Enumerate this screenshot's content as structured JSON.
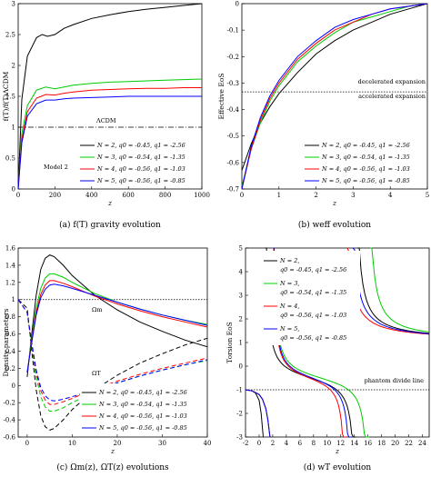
{
  "chart_data": [
    {
      "id": "a",
      "type": "line",
      "caption": "(a)  f(T) gravity evolution",
      "xlabel": "z",
      "ylabel": "f(T)/f(T)ΛCDM",
      "xlim": [
        0,
        1000
      ],
      "ylim": [
        0,
        3
      ],
      "xticks": [
        0,
        200,
        400,
        600,
        800,
        1000
      ],
      "yticks": [
        0,
        0.5,
        1,
        1.5,
        2,
        2.5,
        3
      ],
      "annotations": [
        "ΛCDM",
        "Model 2"
      ],
      "reference": {
        "name": "ΛCDM",
        "y": 1,
        "style": "dashdot"
      },
      "legend": [
        "N = 2, q0 = -0.45, q1 = -2.56",
        "N = 3, q0 = -0.54, q1 = -1.35",
        "N = 4, q0 = -0.56, q1 = -1.03",
        "N = 5, q0 = -0.56, q1 = -0.85"
      ],
      "legend_position": "bottom-right",
      "series": [
        {
          "color": "#000000",
          "x": [
            0,
            20,
            50,
            100,
            130,
            160,
            200,
            250,
            300,
            400,
            500,
            600,
            700,
            800,
            900,
            1000
          ],
          "values": [
            0,
            1.45,
            2.15,
            2.45,
            2.5,
            2.47,
            2.5,
            2.6,
            2.66,
            2.76,
            2.82,
            2.87,
            2.91,
            2.94,
            2.97,
            3.0
          ]
        },
        {
          "color": "#00cc00",
          "x": [
            0,
            20,
            50,
            100,
            150,
            200,
            250,
            300,
            400,
            500,
            600,
            700,
            800,
            900,
            1000
          ],
          "values": [
            0,
            0.9,
            1.35,
            1.6,
            1.65,
            1.62,
            1.65,
            1.68,
            1.71,
            1.73,
            1.74,
            1.75,
            1.76,
            1.77,
            1.78
          ]
        },
        {
          "color": "#ff0000",
          "x": [
            0,
            20,
            50,
            100,
            150,
            200,
            250,
            300,
            400,
            500,
            600,
            700,
            800,
            900,
            1000
          ],
          "values": [
            0,
            0.8,
            1.25,
            1.47,
            1.53,
            1.52,
            1.55,
            1.57,
            1.6,
            1.61,
            1.62,
            1.63,
            1.63,
            1.64,
            1.64
          ]
        },
        {
          "color": "#0000ff",
          "x": [
            0,
            20,
            50,
            100,
            150,
            200,
            250,
            300,
            400,
            500,
            600,
            700,
            800,
            900,
            1000
          ],
          "values": [
            0,
            0.75,
            1.18,
            1.38,
            1.44,
            1.44,
            1.46,
            1.47,
            1.48,
            1.49,
            1.5,
            1.5,
            1.5,
            1.5,
            1.5
          ]
        }
      ]
    },
    {
      "id": "b",
      "type": "line",
      "caption": "(b)  weff evolution",
      "xlabel": "z",
      "ylabel": "Effective EoS",
      "xlim": [
        0,
        5
      ],
      "ylim": [
        -0.7,
        0
      ],
      "xticks": [
        0,
        1,
        2,
        3,
        4,
        5
      ],
      "yticks": [
        -0.7,
        -0.6,
        -0.5,
        -0.4,
        -0.3,
        -0.2,
        -0.1,
        0
      ],
      "annotations": [
        "decelerated expansion",
        "accelerated expansion"
      ],
      "reference": {
        "y": -0.3333,
        "style": "dotted"
      },
      "legend": [
        "N = 2, q0 = -0.45, q1 = -2.56",
        "N = 3, q0 = -0.54, q1 = -1.35",
        "N = 4, q0 = -0.56, q1 = -1.03",
        "N = 5, q0 = -0.56, q1 = -0.85"
      ],
      "legend_position": "bottom-right",
      "series": [
        {
          "color": "#000000",
          "x": [
            0,
            0.25,
            0.5,
            0.75,
            1,
            1.5,
            2,
            2.5,
            3,
            3.5,
            4,
            4.5,
            5
          ],
          "values": [
            -0.63,
            -0.53,
            -0.45,
            -0.39,
            -0.34,
            -0.26,
            -0.19,
            -0.14,
            -0.1,
            -0.07,
            -0.04,
            -0.02,
            0
          ]
        },
        {
          "color": "#00cc00",
          "x": [
            0,
            0.25,
            0.5,
            0.75,
            1,
            1.5,
            2,
            2.5,
            3,
            3.5,
            4,
            4.5,
            5
          ],
          "values": [
            -0.69,
            -0.55,
            -0.45,
            -0.37,
            -0.31,
            -0.22,
            -0.16,
            -0.11,
            -0.07,
            -0.05,
            -0.03,
            -0.01,
            0
          ]
        },
        {
          "color": "#ff0000",
          "x": [
            0,
            0.25,
            0.5,
            0.75,
            1,
            1.5,
            2,
            2.5,
            3,
            3.5,
            4,
            4.5,
            5
          ],
          "values": [
            -0.7,
            -0.55,
            -0.44,
            -0.36,
            -0.3,
            -0.21,
            -0.15,
            -0.1,
            -0.07,
            -0.04,
            -0.02,
            -0.01,
            0
          ]
        },
        {
          "color": "#0000ff",
          "x": [
            0,
            0.25,
            0.5,
            0.75,
            1,
            1.5,
            2,
            2.5,
            3,
            3.5,
            4,
            4.5,
            5
          ],
          "values": [
            -0.7,
            -0.54,
            -0.43,
            -0.35,
            -0.29,
            -0.2,
            -0.14,
            -0.09,
            -0.06,
            -0.04,
            -0.02,
            -0.01,
            0
          ]
        }
      ]
    },
    {
      "id": "c",
      "type": "line",
      "caption": "(c)  Ωm(z), ΩT(z) evolutions",
      "xlabel": "z",
      "ylabel": "Density parameters",
      "xlim": [
        -2,
        40
      ],
      "ylim": [
        -0.6,
        1.6
      ],
      "xticks": [
        0,
        10,
        20,
        30,
        40
      ],
      "yticks": [
        -0.6,
        -0.4,
        -0.2,
        0,
        0.2,
        0.4,
        0.6,
        0.8,
        1,
        1.2,
        1.4,
        1.6
      ],
      "annotations": [
        "Ωm",
        "ΩT"
      ],
      "reference": {
        "y": 1,
        "style": "dotted"
      },
      "legend": [
        "N = 2, q0 = -0.45, q1 = -2.56",
        "N = 3, q0 = -0.54, q1 = -1.35",
        "N = 4, q0 = -0.56, q1 = -1.03",
        "N = 5, q0 = -0.56, q1 = -0.85"
      ],
      "legend_position": "bottom-right",
      "omega_m": [
        {
          "color": "#000000",
          "x": [
            0,
            1,
            2,
            3,
            4,
            5,
            6,
            8,
            10,
            15,
            20,
            25,
            30,
            35,
            40
          ],
          "values": [
            0.1,
            0.6,
            1.05,
            1.35,
            1.48,
            1.52,
            1.5,
            1.4,
            1.28,
            1.05,
            0.88,
            0.74,
            0.63,
            0.53,
            0.45
          ]
        },
        {
          "color": "#00cc00",
          "x": [
            0,
            1,
            2,
            3,
            4,
            5,
            6,
            8,
            10,
            15,
            20,
            25,
            30,
            35,
            40
          ],
          "values": [
            0.15,
            0.55,
            0.9,
            1.13,
            1.25,
            1.3,
            1.3,
            1.26,
            1.2,
            1.07,
            0.97,
            0.89,
            0.82,
            0.76,
            0.71
          ]
        },
        {
          "color": "#ff0000",
          "x": [
            0,
            1,
            2,
            3,
            4,
            5,
            6,
            8,
            10,
            15,
            20,
            25,
            30,
            35,
            40
          ],
          "values": [
            0.15,
            0.52,
            0.85,
            1.06,
            1.17,
            1.22,
            1.22,
            1.19,
            1.15,
            1.04,
            0.95,
            0.87,
            0.8,
            0.74,
            0.68
          ]
        },
        {
          "color": "#0000ff",
          "x": [
            0,
            1,
            2,
            3,
            4,
            5,
            6,
            8,
            10,
            15,
            20,
            25,
            30,
            35,
            40
          ],
          "values": [
            0.15,
            0.5,
            0.82,
            1.02,
            1.12,
            1.17,
            1.18,
            1.16,
            1.13,
            1.05,
            0.97,
            0.89,
            0.82,
            0.76,
            0.7
          ]
        }
      ],
      "omega_t": [
        {
          "color": "#000000",
          "x": [
            -2,
            0,
            1,
            2,
            3,
            4,
            5,
            6,
            8,
            10,
            15,
            20,
            25,
            30,
            35,
            40
          ],
          "values": [
            1.0,
            0.9,
            0.4,
            -0.05,
            -0.35,
            -0.48,
            -0.52,
            -0.5,
            -0.4,
            -0.28,
            -0.05,
            0.12,
            0.26,
            0.37,
            0.47,
            0.55
          ]
        },
        {
          "color": "#00cc00",
          "x": [
            -2,
            0,
            1,
            2,
            3,
            4,
            5,
            6,
            8,
            10,
            15,
            20,
            25,
            30,
            35,
            40
          ],
          "values": [
            1.0,
            0.85,
            0.45,
            0.1,
            -0.13,
            -0.25,
            -0.3,
            -0.3,
            -0.26,
            -0.2,
            -0.07,
            0.03,
            0.11,
            0.18,
            0.24,
            0.29
          ]
        },
        {
          "color": "#ff0000",
          "x": [
            -2,
            0,
            1,
            2,
            3,
            4,
            5,
            6,
            8,
            10,
            15,
            20,
            25,
            30,
            35,
            40
          ],
          "values": [
            1.0,
            0.85,
            0.48,
            0.15,
            -0.06,
            -0.17,
            -0.22,
            -0.22,
            -0.19,
            -0.15,
            -0.04,
            0.05,
            0.13,
            0.2,
            0.26,
            0.32
          ]
        },
        {
          "color": "#0000ff",
          "x": [
            -2,
            0,
            1,
            2,
            3,
            4,
            5,
            6,
            8,
            10,
            15,
            20,
            25,
            30,
            35,
            40
          ],
          "values": [
            1.0,
            0.85,
            0.5,
            0.18,
            -0.02,
            -0.12,
            -0.17,
            -0.18,
            -0.16,
            -0.13,
            -0.05,
            0.03,
            0.11,
            0.18,
            0.24,
            0.3
          ]
        }
      ]
    },
    {
      "id": "d",
      "type": "line",
      "caption": "(d)  wT evolution",
      "xlabel": "z",
      "ylabel": "Torsion EoS",
      "xlim": [
        -2,
        25
      ],
      "ylim": [
        -3,
        5
      ],
      "xticks": [
        -2,
        0,
        2,
        4,
        6,
        8,
        10,
        12,
        14,
        16,
        18,
        20,
        22,
        24
      ],
      "yticks": [
        -3,
        -2,
        -1,
        0,
        1,
        2,
        3,
        4,
        5
      ],
      "annotations": [
        "phantom divide line"
      ],
      "reference": {
        "y": -1,
        "style": "dotted"
      },
      "legend": [
        "N = 2,",
        "q0 = -0.45, q1 = -2.56",
        "N = 3,",
        "q0 = -0.54, q1 = -1.35",
        "N = 4,",
        "q0 = -0.56, q1 = -1.03",
        "N = 5,",
        "q0 = -0.56, q1 = -0.85"
      ],
      "legend_position": "top-left",
      "series": [
        {
          "color": "#000000",
          "pole_low": 0.85,
          "pole_high": 14.3,
          "x": [
            -2,
            -1,
            -0.5,
            0,
            0.3,
            0.6
          ],
          "values": [
            -1.0,
            -1.05,
            -1.15,
            -1.45,
            -2.0,
            -3.0
          ]
        },
        {
          "color": "#00cc00",
          "pole_low": 1.9,
          "pole_high": 16.2,
          "x": [
            -2,
            -1,
            0,
            0.5,
            1,
            1.3,
            1.6
          ],
          "values": [
            -1.0,
            -1.05,
            -1.2,
            -1.4,
            -1.8,
            -2.3,
            -3.0
          ]
        },
        {
          "color": "#ff0000",
          "pole_low": 1.95,
          "pole_high": 12.8,
          "x": [
            -2,
            -1,
            0,
            0.5,
            1,
            1.3,
            1.6
          ],
          "values": [
            -1.0,
            -1.05,
            -1.2,
            -1.4,
            -1.8,
            -2.3,
            -3.0
          ]
        },
        {
          "color": "#0000ff",
          "pole_low": 2.0,
          "pole_high": 13.6,
          "x": [
            -2,
            -1,
            0,
            0.5,
            1,
            1.3,
            1.6
          ],
          "values": [
            -1.0,
            -1.05,
            -1.2,
            -1.4,
            -1.8,
            -2.3,
            -3.0
          ]
        }
      ]
    }
  ]
}
